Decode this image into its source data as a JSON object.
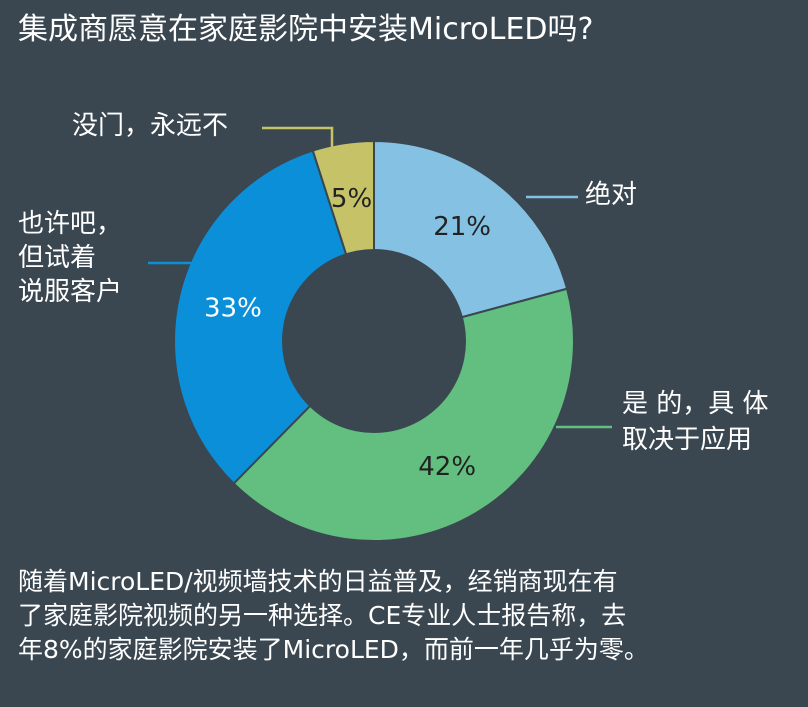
{
  "title": "集成商愿意在家庭影院中安装MicroLED吗?",
  "chart_data": {
    "type": "pie",
    "title": "集成商愿意在家庭影院中安装MicroLED吗?",
    "slices": [
      {
        "label": [
          "绝对"
        ],
        "value": 21,
        "display": "21%",
        "color": "#85c1e3",
        "label_color": "#222222"
      },
      {
        "label": [
          "是 的，具 体",
          "取决于应用"
        ],
        "value": 42,
        "display": "42%",
        "color": "#63bf7f",
        "label_color": "#222222"
      },
      {
        "label": [
          "也许吧，",
          "但试着",
          "说服客户"
        ],
        "value": 33,
        "display": "33%",
        "color": "#0a8fd8",
        "label_color": "#ffffff"
      },
      {
        "label": [
          "没门，永远不"
        ],
        "value": 5,
        "display": "5%",
        "color": "#c5c267",
        "label_color": "#222222"
      }
    ],
    "donut": true
  },
  "footnote": [
    "随着MicroLED/视频墙技术的日益普及，经销商现在有",
    "了家庭影院视频的另一种选择。CE专业人士报告称，去",
    "年8%的家庭影院安装了MicroLED，而前一年几乎为零。"
  ]
}
